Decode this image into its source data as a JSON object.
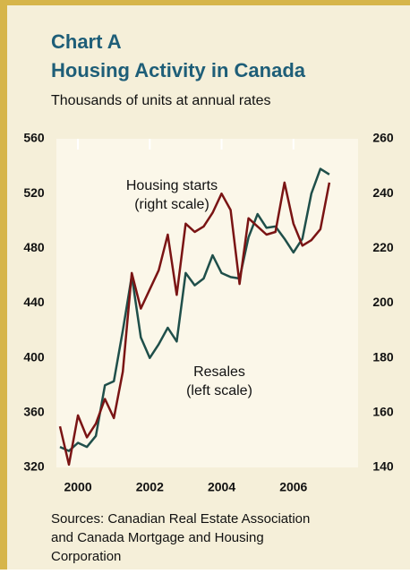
{
  "chart_data": {
    "type": "line",
    "title": "Chart A",
    "subtitle_title": "Housing Activity in Canada",
    "subtitle": "Thousands of units at annual rates",
    "x": [
      2000,
      2000.25,
      2000.5,
      2000.75,
      2001,
      2001.25,
      2001.5,
      2001.75,
      2002,
      2002.25,
      2002.5,
      2002.75,
      2003,
      2003.25,
      2003.5,
      2003.75,
      2004,
      2004.25,
      2004.5,
      2004.75,
      2005,
      2005.25,
      2005.5,
      2005.75,
      2006,
      2006.25,
      2006.5,
      2006.75,
      2007,
      2007.25,
      2007.5
    ],
    "series": [
      {
        "name": "Resales",
        "color": "#1f4f4a",
        "axis": "y",
        "values": [
          335,
          332,
          338,
          335,
          343,
          380,
          383,
          420,
          460,
          415,
          400,
          410,
          422,
          412,
          462,
          453,
          458,
          475,
          462,
          459,
          458,
          488,
          505,
          495,
          496,
          487,
          477,
          487,
          520,
          538,
          534
        ]
      },
      {
        "name": "Housing starts",
        "color": "#7a1414",
        "axis": "y2",
        "values": [
          155,
          141,
          159,
          151,
          156,
          165,
          158,
          175,
          211,
          198,
          205,
          212,
          225,
          203,
          229,
          226,
          228,
          233,
          240,
          234,
          207,
          231,
          228,
          225,
          226,
          244,
          229,
          221,
          223,
          227,
          244
        ]
      }
    ],
    "annotations": [
      {
        "lines": [
          "Housing starts",
          "(right scale)"
        ]
      },
      {
        "lines": [
          "Resales",
          "(left scale)"
        ]
      }
    ],
    "xlim": [
      1999.9,
      2008.3
    ],
    "xticks": [
      {
        "value": 2000.5,
        "label": "2000"
      },
      {
        "value": 2002.5,
        "label": "2002"
      },
      {
        "value": 2004.5,
        "label": "2004"
      },
      {
        "value": 2006.5,
        "label": "2006"
      }
    ],
    "ylim": [
      320,
      560
    ],
    "yticks": [
      320,
      360,
      400,
      440,
      480,
      520,
      560
    ],
    "y2lim": [
      140,
      260
    ],
    "y2ticks": [
      140,
      160,
      180,
      200,
      220,
      240,
      260
    ],
    "source": [
      "Sources: Canadian Real Estate Association",
      "and Canada Mortgage and Housing",
      "Corporation"
    ]
  }
}
